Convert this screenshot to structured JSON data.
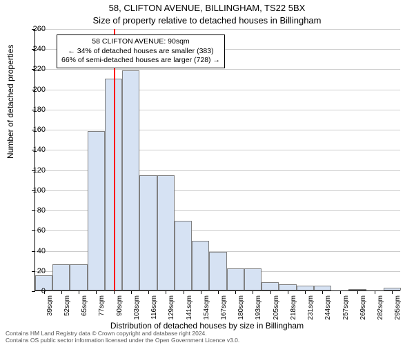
{
  "chart": {
    "type": "histogram",
    "title_main": "58, CLIFTON AVENUE, BILLINGHAM, TS22 5BX",
    "title_sub": "Size of property relative to detached houses in Billingham",
    "ylabel": "Number of detached properties",
    "xlabel": "Distribution of detached houses by size in Billingham",
    "ylim": [
      0,
      260
    ],
    "ytick_step": 20,
    "background_color": "#ffffff",
    "grid_color": "#cccccc",
    "axis_color": "#000000",
    "bar_fill": "#d6e2f3",
    "bar_border": "#808080",
    "ref_line_color": "#ff0000",
    "ref_line_x": 90,
    "title_fontsize": 13,
    "label_fontsize": 12,
    "tick_fontsize": 11,
    "xtick_fontsize": 10,
    "annotation": {
      "line1": "58 CLIFTON AVENUE: 90sqm",
      "line2": "← 34% of detached houses are smaller (383)",
      "line3": "66% of semi-detached houses are larger (728) →",
      "border_color": "#000000",
      "bg_color": "#ffffff",
      "fontsize": 10.5
    },
    "categories": [
      "39sqm",
      "52sqm",
      "65sqm",
      "77sqm",
      "90sqm",
      "103sqm",
      "116sqm",
      "129sqm",
      "141sqm",
      "154sqm",
      "167sqm",
      "180sqm",
      "193sqm",
      "205sqm",
      "218sqm",
      "231sqm",
      "244sqm",
      "257sqm",
      "269sqm",
      "282sqm",
      "295sqm"
    ],
    "values": [
      15,
      26,
      26,
      158,
      210,
      218,
      114,
      114,
      69,
      49,
      38,
      22,
      22,
      8,
      6,
      5,
      5,
      0,
      1,
      0,
      3
    ],
    "footer_line1": "Contains HM Land Registry data © Crown copyright and database right 2024.",
    "footer_line2": "Contains OS public sector information licensed under the Open Government Licence v3.0."
  }
}
